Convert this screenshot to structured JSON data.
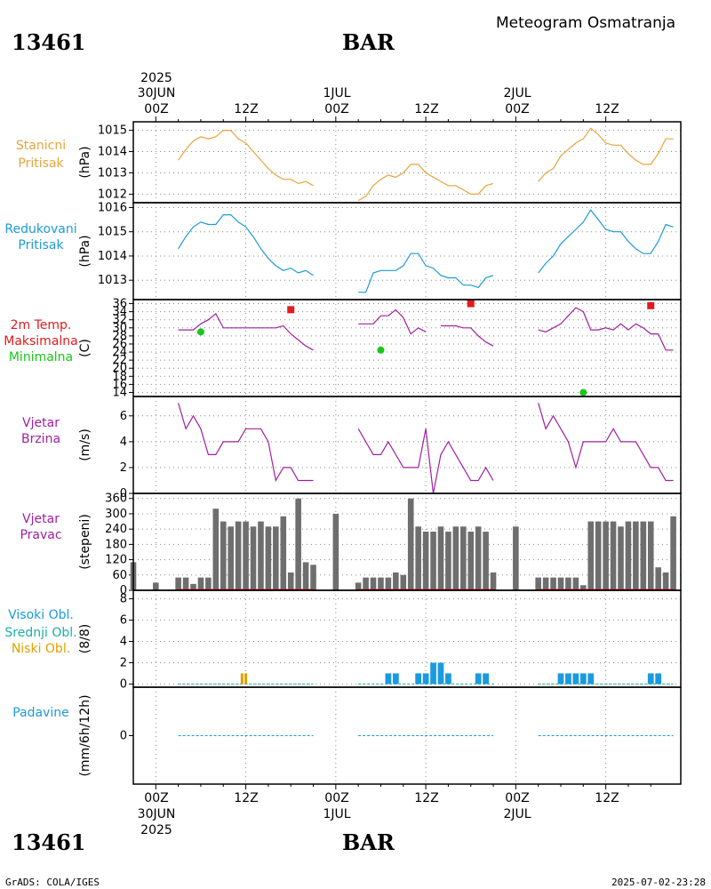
{
  "header": {
    "station": "13461",
    "city": "BAR",
    "title": "Meteogram Osmatranja",
    "year": "2025"
  },
  "footer": {
    "credit": "GrADS: COLA/IGES",
    "timestamp": "2025-07-02-23:28"
  },
  "time_labels": {
    "top_dates": [
      "30JUN",
      "1JUL",
      "2JUL"
    ],
    "bottom_dates": [
      "30JUN",
      "1JUL",
      "2JUL"
    ],
    "hours": [
      "00Z",
      "12Z",
      "00Z",
      "12Z",
      "00Z",
      "12Z"
    ]
  },
  "colors": {
    "pressure": "#e8a33c",
    "reduced_pressure": "#1e9ad6",
    "max_temp": "#e31a1c",
    "min_temp": "#19c719",
    "wind": "#a020a0",
    "bars": "#6e6e6e",
    "high_cloud": "#1a9ae0",
    "mid_cloud": "#19b0a6",
    "low_cloud": "#e0a000",
    "precip": "#1e9ad6"
  },
  "panels": [
    {
      "labels": [
        "Stanicni",
        "Pritisak"
      ],
      "unit": "(hPa)",
      "yticks": [
        "1015",
        "1014",
        "1013",
        "1012"
      ]
    },
    {
      "labels": [
        "Redukovani",
        "Pritisak"
      ],
      "unit": "(hPa)",
      "yticks": [
        "1016",
        "1015",
        "1014",
        "1013"
      ]
    },
    {
      "labels": [
        "2m Temp.",
        "Maksimalna",
        "Minimalna"
      ],
      "unit": "(C)",
      "yticks": [
        "36",
        "34",
        "32",
        "30",
        "28",
        "26",
        "24",
        "22",
        "20",
        "18",
        "16",
        "14"
      ]
    },
    {
      "labels": [
        "Vjetar",
        "Brzina"
      ],
      "unit": "(m/s)",
      "yticks": [
        "6",
        "4",
        "2",
        "0"
      ]
    },
    {
      "labels": [
        "Vjetar",
        "Pravac"
      ],
      "unit": "(stepeni)",
      "yticks": [
        "360",
        "300",
        "240",
        "180",
        "120",
        "60",
        "0"
      ]
    },
    {
      "labels": [
        "Visoki Obl.",
        "Srednji Obl.",
        "Niski Obl."
      ],
      "unit": "(8/8)",
      "yticks": [
        "8",
        "6",
        "4",
        "2",
        "0"
      ]
    },
    {
      "labels": [
        "Padavine"
      ],
      "unit": "(mm/6h/12h)",
      "yticks": [
        "0"
      ]
    }
  ],
  "chart_data": {
    "type": "line",
    "title": "Meteogram Osmatranja 13461 BAR",
    "x_units": "hours since 2025-06-30 00Z",
    "x_range": [
      -3,
      70
    ],
    "station_pressure": {
      "ylim": [
        1011.6,
        1015.4
      ],
      "segments": [
        {
          "x": [
            3,
            4,
            5,
            6,
            7,
            8,
            9,
            10,
            11,
            12,
            13,
            14,
            15,
            16,
            17,
            18,
            19,
            20,
            21
          ],
          "y": [
            1013.6,
            1014.1,
            1014.5,
            1014.7,
            1014.6,
            1014.7,
            1015.0,
            1015.0,
            1014.6,
            1014.4,
            1014.0,
            1013.6,
            1013.2,
            1012.9,
            1012.7,
            1012.7,
            1012.5,
            1012.6,
            1012.4
          ]
        },
        {
          "x": [
            27,
            28,
            29,
            30,
            31,
            32,
            33,
            34,
            35,
            36,
            37,
            38,
            39,
            40,
            41,
            42,
            43,
            44,
            45
          ],
          "y": [
            1011.7,
            1011.9,
            1012.4,
            1012.7,
            1012.9,
            1012.8,
            1013.0,
            1013.4,
            1013.4,
            1013.0,
            1012.8,
            1012.6,
            1012.4,
            1012.4,
            1012.2,
            1012.0,
            1012.0,
            1012.4,
            1012.5
          ]
        },
        {
          "x": [
            51,
            52,
            53,
            54,
            55,
            56,
            57,
            58,
            59,
            60,
            61,
            62,
            63,
            64,
            65,
            66,
            67,
            68,
            69
          ],
          "y": [
            1012.6,
            1013.0,
            1013.2,
            1013.8,
            1014.1,
            1014.4,
            1014.6,
            1015.1,
            1014.8,
            1014.4,
            1014.3,
            1014.3,
            1013.9,
            1013.6,
            1013.4,
            1013.4,
            1013.9,
            1014.6,
            1014.6
          ]
        }
      ]
    },
    "reduced_pressure": {
      "ylim": [
        1012.2,
        1016.2
      ],
      "segments": [
        {
          "x": [
            3,
            4,
            5,
            6,
            7,
            8,
            9,
            10,
            11,
            12,
            13,
            14,
            15,
            16,
            17,
            18,
            19,
            20,
            21
          ],
          "y": [
            1014.3,
            1014.8,
            1015.2,
            1015.4,
            1015.3,
            1015.3,
            1015.7,
            1015.7,
            1015.4,
            1015.2,
            1014.8,
            1014.3,
            1013.9,
            1013.6,
            1013.4,
            1013.5,
            1013.3,
            1013.4,
            1013.2
          ]
        },
        {
          "x": [
            27,
            28,
            29,
            30,
            31,
            32,
            33,
            34,
            35,
            36,
            37,
            38,
            39,
            40,
            41,
            42,
            43,
            44,
            45
          ],
          "y": [
            1012.5,
            1012.5,
            1013.3,
            1013.4,
            1013.4,
            1013.4,
            1013.6,
            1014.1,
            1014.1,
            1013.6,
            1013.5,
            1013.2,
            1013.1,
            1013.1,
            1012.8,
            1012.8,
            1012.7,
            1013.1,
            1013.2
          ]
        },
        {
          "x": [
            51,
            52,
            53,
            54,
            55,
            56,
            57,
            58,
            59,
            60,
            61,
            62,
            63,
            64,
            65,
            66,
            67,
            68,
            69
          ],
          "y": [
            1013.3,
            1013.7,
            1014.0,
            1014.5,
            1014.8,
            1015.1,
            1015.4,
            1015.9,
            1015.5,
            1015.1,
            1015.0,
            1015.0,
            1014.6,
            1014.3,
            1014.1,
            1014.1,
            1014.6,
            1015.3,
            1015.2
          ]
        }
      ]
    },
    "temperature": {
      "ylim": [
        13,
        37
      ],
      "segments": [
        {
          "x": [
            3,
            4,
            5,
            6,
            7,
            8,
            9,
            10,
            11,
            12,
            13,
            14,
            15,
            16,
            17,
            18,
            19,
            20,
            21
          ],
          "y": [
            29.5,
            29.5,
            29.5,
            31,
            32,
            33.5,
            30,
            30,
            30,
            30,
            30,
            30,
            30,
            30,
            30.5,
            28.5,
            27,
            25.5,
            24.5
          ]
        },
        {
          "x": [
            27,
            28,
            29,
            30,
            31,
            32,
            33,
            34,
            35,
            36
          ],
          "y": [
            31,
            31,
            31,
            33,
            33,
            34.5,
            32.5,
            28.5,
            30,
            29
          ]
        },
        {
          "x": [
            38,
            39,
            40,
            41,
            42,
            43,
            44,
            45
          ],
          "y": [
            30.5,
            30.5,
            30.5,
            30,
            30,
            28,
            26.5,
            25.5
          ]
        },
        {
          "x": [
            51,
            52,
            53,
            54,
            55,
            56,
            57,
            58,
            59,
            60,
            61,
            62,
            63,
            64,
            65,
            66,
            67,
            68,
            69
          ],
          "y": [
            29.5,
            29,
            30,
            31,
            33,
            35,
            34,
            29.5,
            29.5,
            30,
            29.5,
            31,
            29.5,
            31,
            30,
            28.5,
            28.5,
            24.5,
            24.5
          ]
        }
      ],
      "max_points": [
        {
          "x": 18,
          "y": 34.5
        },
        {
          "x": 42,
          "y": 36
        },
        {
          "x": 66,
          "y": 35.5
        }
      ],
      "min_points": [
        {
          "x": 6,
          "y": 29
        },
        {
          "x": 30,
          "y": 24.5
        },
        {
          "x": 57,
          "y": 14
        }
      ]
    },
    "wind_speed": {
      "ylim": [
        0,
        7.5
      ],
      "segments": [
        {
          "x": [
            3,
            4,
            5,
            6,
            7,
            8,
            9,
            10,
            11,
            12,
            13,
            14,
            15,
            16,
            17,
            18,
            19,
            20,
            21
          ],
          "y": [
            7,
            5,
            6,
            5,
            3,
            3,
            4,
            4,
            4,
            5,
            5,
            5,
            4,
            1,
            2,
            2,
            1,
            1,
            1
          ]
        },
        {
          "x": [
            27,
            28,
            29,
            30,
            31,
            32,
            33,
            34,
            35,
            36,
            37,
            38,
            39,
            40,
            41,
            42,
            43,
            44,
            45
          ],
          "y": [
            5,
            4,
            3,
            3,
            4,
            3,
            2,
            2,
            2,
            5,
            0,
            3,
            4,
            3,
            2,
            1,
            1,
            2,
            1
          ]
        },
        {
          "x": [
            51,
            52,
            53,
            54,
            55,
            56,
            57,
            58,
            59,
            60,
            61,
            62,
            63,
            64,
            65,
            66,
            67,
            68,
            69
          ],
          "y": [
            7,
            5,
            6,
            5,
            4,
            2,
            4,
            4,
            4,
            4,
            5,
            4,
            4,
            4,
            3,
            2,
            2,
            1,
            1
          ]
        }
      ]
    },
    "wind_direction": {
      "ylim": [
        0,
        380
      ],
      "x": [
        -3,
        0,
        3,
        4,
        5,
        6,
        7,
        8,
        9,
        10,
        11,
        12,
        13,
        14,
        15,
        16,
        17,
        18,
        19,
        20,
        21,
        24,
        27,
        28,
        29,
        30,
        31,
        32,
        33,
        34,
        35,
        36,
        37,
        38,
        39,
        40,
        41,
        42,
        43,
        44,
        45,
        48,
        51,
        52,
        53,
        54,
        55,
        56,
        57,
        58,
        59,
        60,
        61,
        62,
        63,
        64,
        65,
        66,
        67,
        68,
        69
      ],
      "y": [
        110,
        30,
        50,
        50,
        25,
        50,
        50,
        320,
        270,
        250,
        270,
        270,
        250,
        270,
        250,
        250,
        290,
        70,
        360,
        110,
        100,
        300,
        30,
        50,
        50,
        50,
        50,
        70,
        60,
        360,
        250,
        230,
        230,
        250,
        230,
        250,
        250,
        230,
        250,
        230,
        70,
        250,
        50,
        50,
        50,
        50,
        50,
        50,
        20,
        270,
        270,
        270,
        270,
        250,
        270,
        270,
        270,
        270,
        90,
        70,
        290
      ],
      "bar_70": [
        68.5
      ]
    },
    "clouds": {
      "ylim": [
        -0.3,
        8.8
      ],
      "high": {
        "x": [
          31,
          32,
          35,
          36,
          37,
          38,
          39,
          43,
          44,
          54,
          55,
          56,
          57,
          58,
          66,
          67
        ],
        "y": [
          1,
          1,
          1,
          1,
          2,
          2,
          1,
          1,
          1,
          1,
          1,
          1,
          1,
          1,
          1,
          1
        ]
      },
      "low": {
        "x": [
          11.5,
          12
        ],
        "y": [
          1,
          1
        ]
      }
    },
    "precipitation": {
      "ylim": [
        -1,
        1
      ],
      "value": 0
    }
  }
}
